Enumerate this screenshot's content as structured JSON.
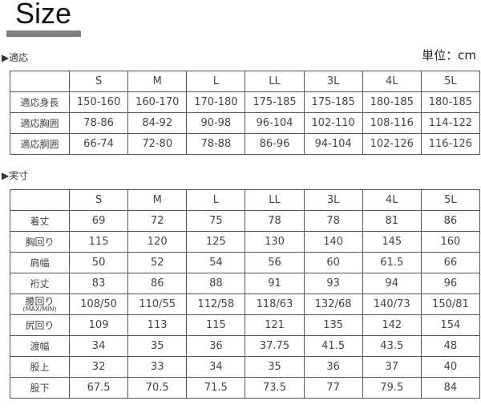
{
  "title": "Size",
  "unit": "単位：cm",
  "section1": {
    "label": "▶適応",
    "headers": [
      "",
      "S",
      "M",
      "L",
      "LL",
      "3L",
      "4L",
      "5L"
    ],
    "rows": [
      {
        "label": "適応身長",
        "values": [
          "150-160",
          "160-170",
          "170-180",
          "175-185",
          "175-185",
          "180-185",
          "180-185"
        ]
      },
      {
        "label": "適応胸囲",
        "values": [
          "78-86",
          "84-92",
          "90-98",
          "96-104",
          "102-110",
          "108-116",
          "114-122"
        ]
      },
      {
        "label": "適応胴囲",
        "values": [
          "66-74",
          "72-80",
          "78-88",
          "86-96",
          "94-104",
          "102-126",
          "116-126"
        ]
      }
    ]
  },
  "section2": {
    "label": "▶実寸",
    "headers": [
      "",
      "S",
      "M",
      "L",
      "LL",
      "3L",
      "4L",
      "5L"
    ],
    "rows": [
      {
        "label": "着丈",
        "values": [
          "69",
          "72",
          "75",
          "78",
          "78",
          "81",
          "86"
        ]
      },
      {
        "label": "胸回り",
        "values": [
          "115",
          "120",
          "125",
          "130",
          "140",
          "145",
          "160"
        ]
      },
      {
        "label": "肩幅",
        "values": [
          "50",
          "52",
          "54",
          "56",
          "60",
          "61.5",
          "66"
        ]
      },
      {
        "label": "裄丈",
        "values": [
          "83",
          "86",
          "88",
          "91",
          "93",
          "94",
          "96"
        ]
      },
      {
        "label": "腰回り",
        "sublabel": "(MAX/MIN)",
        "values": [
          "108/50",
          "110/55",
          "112/58",
          "118/63",
          "132/68",
          "140/73",
          "150/81"
        ]
      },
      {
        "label": "尻回り",
        "values": [
          "109",
          "113",
          "115",
          "121",
          "135",
          "142",
          "154"
        ]
      },
      {
        "label": "渡幅",
        "values": [
          "34",
          "35",
          "36",
          "37.75",
          "41.5",
          "43.5",
          "48"
        ]
      },
      {
        "label": "股上",
        "values": [
          "32",
          "33",
          "34",
          "35",
          "36",
          "37",
          "40"
        ]
      },
      {
        "label": "股下",
        "values": [
          "67.5",
          "70.5",
          "71.5",
          "73.5",
          "77",
          "79.5",
          "84"
        ]
      }
    ]
  }
}
